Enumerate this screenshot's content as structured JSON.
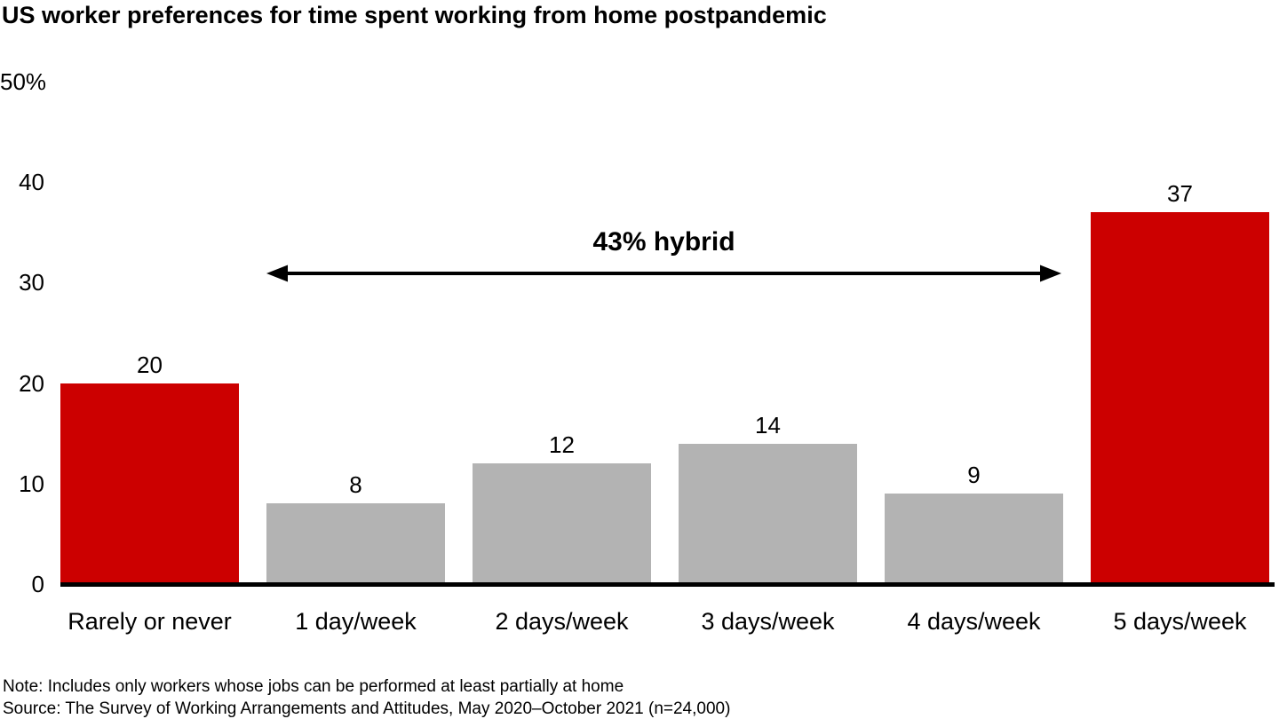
{
  "title": "US worker preferences for time spent working from home postpandemic",
  "chart_data": {
    "type": "bar",
    "title": "US worker preferences for time spent working from home postpandemic",
    "categories": [
      "Rarely or never",
      "1 day/week",
      "2 days/week",
      "3 days/week",
      "4 days/week",
      "5 days/week"
    ],
    "values": [
      20,
      8,
      12,
      14,
      9,
      37
    ],
    "bar_colors": [
      "#cc0000",
      "#b3b3b3",
      "#b3b3b3",
      "#b3b3b3",
      "#b3b3b3",
      "#cc0000"
    ],
    "xlabel": "",
    "ylabel": "%",
    "ylim": [
      0,
      50
    ],
    "y_ticks": [
      {
        "value": 50,
        "label": "50%"
      },
      {
        "value": 40,
        "label": "40"
      },
      {
        "value": 30,
        "label": "30"
      },
      {
        "value": 20,
        "label": "20"
      },
      {
        "value": 10,
        "label": "10"
      },
      {
        "value": 0,
        "label": "0"
      }
    ],
    "grid": false,
    "legend": false,
    "annotation": {
      "label": "43% hybrid",
      "spans_categories": [
        "1 day/week",
        "2 days/week",
        "3 days/week",
        "4 days/week"
      ],
      "arrow": "double-headed"
    }
  },
  "colors": {
    "highlight": "#cc0000",
    "neutral": "#b3b3b3",
    "axis": "#000000",
    "text": "#000000"
  },
  "footer": {
    "note": "Note: Includes only workers whose jobs can be performed at least partially at home",
    "source": "Source: The Survey of Working Arrangements and Attitudes, May 2020–October 2021 (n=24,000)"
  }
}
